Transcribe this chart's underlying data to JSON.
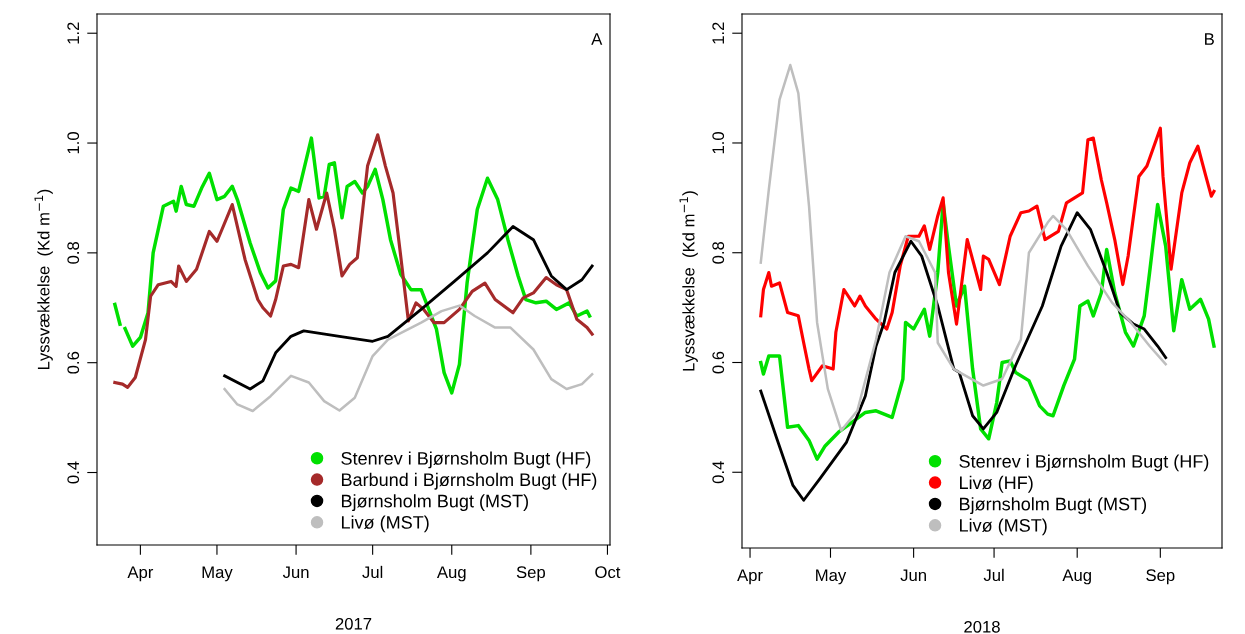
{
  "chart_data": [
    {
      "type": "line",
      "xlabel": "2017",
      "ylabel": "Lyssvækkelse  (Kd m$^{−1}$)",
      "annotations": [
        "A"
      ],
      "xlim": [
        "2017-03-15",
        "2017-10-02"
      ],
      "xticks": [
        {
          "value": "2017-04-01",
          "label": "Apr"
        },
        {
          "value": "2017-05-01",
          "label": "May"
        },
        {
          "value": "2017-06-01",
          "label": "Jun"
        },
        {
          "value": "2017-07-01",
          "label": "Jul"
        },
        {
          "value": "2017-08-01",
          "label": "Aug"
        },
        {
          "value": "2017-09-01",
          "label": "Sep"
        },
        {
          "value": "2017-10-01",
          "label": "Oct"
        }
      ],
      "ylim": [
        0.268,
        1.235
      ],
      "yticks": [
        {
          "value": 0.4,
          "label": "0.4"
        },
        {
          "value": 0.6,
          "label": "0.6"
        },
        {
          "value": 0.8,
          "label": "0.8"
        },
        {
          "value": 1.0,
          "label": "1.0"
        },
        {
          "value": 1.2,
          "label": "1.2"
        }
      ],
      "legend": "bottom right",
      "marker": "none",
      "line_style": "solid",
      "series": [
        {
          "name": "Stenrev i Bjørnsholm Bugt (HF)",
          "color": "#00e000",
          "x": [
            "2017-03-22",
            "2017-03-24",
            "2017-03-25",
            "2017-03-26",
            "2017-03-29",
            "2017-04-01",
            "2017-04-04",
            "2017-04-06",
            "2017-04-10",
            "2017-04-14",
            "2017-04-15",
            "2017-04-17",
            "2017-04-19",
            "2017-04-22",
            "2017-04-25",
            "2017-04-28",
            "2017-05-01",
            "2017-05-04",
            "2017-05-07",
            "2017-05-09",
            "2017-05-14",
            "2017-05-18",
            "2017-05-21",
            "2017-05-24",
            "2017-05-27",
            "2017-05-30",
            "2017-06-02",
            "2017-06-07",
            "2017-06-10",
            "2017-06-12",
            "2017-06-14",
            "2017-06-16",
            "2017-06-19",
            "2017-06-21",
            "2017-06-24",
            "2017-06-27",
            "2017-06-29",
            "2017-07-02",
            "2017-07-05",
            "2017-07-08",
            "2017-07-12",
            "2017-07-16",
            "2017-07-20",
            "2017-07-26",
            "2017-07-29",
            "2017-08-01",
            "2017-08-04",
            "2017-08-07",
            "2017-08-11",
            "2017-08-15",
            "2017-08-19",
            "2017-08-23",
            "2017-08-27",
            "2017-08-30",
            "2017-09-03",
            "2017-09-07",
            "2017-09-11",
            "2017-09-16",
            "2017-09-19",
            "2017-09-23",
            "2017-09-24"
          ],
          "values": [
            0.706,
            0.67,
            null,
            0.662,
            0.63,
            0.646,
            0.691,
            0.8,
            0.885,
            0.894,
            0.876,
            0.921,
            0.888,
            0.885,
            0.918,
            0.945,
            0.897,
            0.903,
            0.921,
            0.897,
            0.818,
            0.764,
            0.736,
            0.749,
            0.879,
            0.918,
            0.912,
            1.009,
            0.9,
            0.903,
            0.961,
            0.964,
            0.864,
            0.921,
            0.93,
            0.909,
            0.921,
            0.952,
            0.897,
            0.824,
            0.761,
            0.733,
            0.733,
            0.661,
            0.582,
            0.545,
            0.597,
            0.745,
            0.879,
            0.936,
            0.897,
            0.824,
            0.758,
            0.715,
            0.709,
            0.712,
            0.697,
            0.709,
            0.685,
            0.694,
            0.685
          ]
        },
        {
          "name": "Barbund i Bjørnsholm Bugt (HF)",
          "color": "#a52a2a",
          "x": [
            "2017-03-22",
            "2017-03-25",
            "2017-03-27",
            "2017-03-30",
            "2017-04-03",
            "2017-04-05",
            "2017-04-08",
            "2017-04-13",
            "2017-04-15",
            "2017-04-16",
            "2017-04-19",
            "2017-04-23",
            "2017-04-28",
            "2017-05-01",
            "2017-05-03",
            "2017-05-07",
            "2017-05-12",
            "2017-05-17",
            "2017-05-19",
            "2017-05-22",
            "2017-05-24",
            "2017-05-27",
            "2017-05-30",
            "2017-06-02",
            "2017-06-06",
            "2017-06-09",
            "2017-06-13",
            "2017-06-16",
            "2017-06-19",
            "2017-06-22",
            "2017-06-25",
            "2017-06-29",
            "2017-07-03",
            "2017-07-06",
            "2017-07-09",
            "2017-07-12",
            "2017-07-15",
            "2017-07-18",
            "2017-07-21",
            "2017-07-25",
            "2017-07-29",
            "2017-08-04",
            "2017-08-09",
            "2017-08-14",
            "2017-08-18",
            "2017-08-25",
            "2017-08-29",
            "2017-09-02",
            "2017-09-07",
            "2017-09-11",
            "2017-09-15",
            "2017-09-19",
            "2017-09-23",
            "2017-09-25"
          ],
          "values": [
            0.564,
            0.561,
            0.555,
            0.573,
            0.642,
            0.721,
            0.742,
            0.748,
            0.739,
            0.776,
            0.748,
            0.77,
            0.839,
            0.821,
            0.843,
            0.888,
            0.788,
            0.715,
            0.7,
            0.685,
            0.715,
            0.776,
            0.779,
            0.773,
            0.897,
            0.843,
            0.909,
            0.843,
            0.758,
            0.779,
            0.791,
            0.958,
            1.015,
            0.958,
            0.909,
            0.794,
            0.676,
            0.709,
            0.697,
            0.673,
            0.673,
            0.697,
            0.73,
            0.745,
            0.715,
            0.691,
            0.718,
            0.727,
            0.755,
            0.742,
            0.733,
            0.679,
            0.664,
            0.652
          ]
        },
        {
          "name": "Bjørnsholm Bugt (MST)",
          "color": "#000000",
          "x": [
            "2017-05-04",
            "2017-05-14",
            "2017-05-19",
            "2017-05-24",
            "2017-05-30",
            "2017-06-04",
            "2017-06-18",
            "2017-07-01",
            "2017-07-07",
            "2017-07-20",
            "2017-08-02",
            "2017-08-15",
            "2017-08-25",
            "2017-09-02",
            "2017-09-09",
            "2017-09-15",
            "2017-09-21",
            "2017-09-25"
          ],
          "values": [
            0.576,
            0.552,
            0.567,
            0.618,
            0.648,
            0.658,
            0.648,
            0.639,
            0.648,
            0.697,
            0.748,
            0.8,
            0.848,
            0.824,
            0.758,
            0.733,
            0.751,
            0.776
          ]
        },
        {
          "name": "Livø (MST)",
          "color": "#bebebe",
          "x": [
            "2017-05-04",
            "2017-05-09",
            "2017-05-15",
            "2017-05-22",
            "2017-05-30",
            "2017-06-06",
            "2017-06-12",
            "2017-06-18",
            "2017-06-24",
            "2017-07-01",
            "2017-07-07",
            "2017-07-20",
            "2017-07-28",
            "2017-08-04",
            "2017-08-10",
            "2017-08-18",
            "2017-08-24",
            "2017-09-02",
            "2017-09-09",
            "2017-09-15",
            "2017-09-21",
            "2017-09-25"
          ],
          "values": [
            0.552,
            0.524,
            0.512,
            0.539,
            0.576,
            0.564,
            0.53,
            0.513,
            0.536,
            0.612,
            0.642,
            0.673,
            0.694,
            0.704,
            0.685,
            0.664,
            0.664,
            0.624,
            0.57,
            0.552,
            0.561,
            0.579
          ]
        }
      ]
    },
    {
      "type": "line",
      "xlabel": "2018",
      "ylabel": "Lyssvækkelse  (Kd m$^{−1}$)",
      "annotations": [
        "B"
      ],
      "xlim": [
        "2018-03-29",
        "2018-09-24"
      ],
      "xticks": [
        {
          "value": "2018-04-01",
          "label": "Apr"
        },
        {
          "value": "2018-05-01",
          "label": "May"
        },
        {
          "value": "2018-06-01",
          "label": "Jun"
        },
        {
          "value": "2018-07-01",
          "label": "Jul"
        },
        {
          "value": "2018-08-01",
          "label": "Aug"
        },
        {
          "value": "2018-09-01",
          "label": "Sep"
        }
      ],
      "ylim": [
        0.262,
        1.235
      ],
      "yticks": [
        {
          "value": 0.4,
          "label": "0.4"
        },
        {
          "value": 0.6,
          "label": "0.6"
        },
        {
          "value": 0.8,
          "label": "0.8"
        },
        {
          "value": 1.0,
          "label": "1.0"
        },
        {
          "value": 1.2,
          "label": "1.2"
        }
      ],
      "legend": "bottom right",
      "marker": "none",
      "line_style": "solid",
      "series": [
        {
          "name": "Stenrev i Bjørnsholm Bugt (HF)",
          "color": "#00e000",
          "x": [
            "2018-04-05",
            "2018-04-06",
            "2018-04-08",
            "2018-04-12",
            "2018-04-15",
            "2018-04-19",
            "2018-04-23",
            "2018-04-26",
            "2018-04-29",
            "2018-05-04",
            "2018-05-09",
            "2018-05-14",
            "2018-05-18",
            "2018-05-24",
            "2018-05-28",
            "2018-05-29",
            "2018-06-01",
            "2018-06-05",
            "2018-06-07",
            "2018-06-10",
            "2018-06-12",
            "2018-06-14",
            "2018-06-17",
            "2018-06-20",
            "2018-06-23",
            "2018-06-26",
            "2018-06-29",
            "2018-07-02",
            "2018-07-04",
            "2018-07-07",
            "2018-07-09",
            "2018-07-14",
            "2018-07-18",
            "2018-07-21",
            "2018-07-23",
            "2018-07-27",
            "2018-07-31",
            "2018-08-02",
            "2018-08-05",
            "2018-08-07",
            "2018-08-10",
            "2018-08-12",
            "2018-08-15",
            "2018-08-19",
            "2018-08-22",
            "2018-08-26",
            "2018-08-28",
            "2018-08-31",
            "2018-09-03",
            "2018-09-06",
            "2018-09-09",
            "2018-09-12",
            "2018-09-16",
            "2018-09-19",
            "2018-09-21"
          ],
          "values": [
            0.6,
            0.579,
            0.612,
            0.612,
            0.482,
            0.485,
            0.458,
            0.424,
            0.448,
            0.473,
            0.491,
            0.509,
            0.512,
            0.5,
            0.57,
            0.673,
            0.661,
            0.697,
            0.648,
            0.764,
            0.891,
            0.812,
            0.703,
            0.739,
            0.588,
            0.479,
            0.461,
            0.527,
            0.6,
            0.603,
            0.582,
            0.567,
            0.521,
            0.506,
            0.503,
            0.558,
            0.606,
            0.703,
            0.712,
            0.685,
            0.727,
            0.806,
            0.727,
            0.655,
            0.63,
            0.685,
            0.764,
            0.888,
            0.812,
            0.658,
            0.751,
            0.697,
            0.715,
            0.679,
            0.63
          ]
        },
        {
          "name": "Livø (HF)",
          "color": "#ff0000",
          "x": [
            "2018-04-05",
            "2018-04-06",
            "2018-04-08",
            "2018-04-09",
            "2018-04-12",
            "2018-04-15",
            "2018-04-19",
            "2018-04-21",
            "2018-04-23",
            "2018-04-24",
            "2018-04-28",
            "2018-05-02",
            "2018-05-03",
            "2018-05-06",
            "2018-05-10",
            "2018-05-12",
            "2018-05-14",
            "2018-05-18",
            "2018-05-22",
            "2018-05-24",
            "2018-05-27",
            "2018-05-30",
            "2018-06-03",
            "2018-06-05",
            "2018-06-07",
            "2018-06-10",
            "2018-06-12",
            "2018-06-14",
            "2018-06-17",
            "2018-06-21",
            "2018-06-26",
            "2018-06-27",
            "2018-06-29",
            "2018-07-03",
            "2018-07-07",
            "2018-07-11",
            "2018-07-14",
            "2018-07-17",
            "2018-07-20",
            "2018-07-25",
            "2018-07-28",
            "2018-08-03",
            "2018-08-05",
            "2018-08-07",
            "2018-08-10",
            "2018-08-12",
            "2018-08-15",
            "2018-08-18",
            "2018-08-20",
            "2018-08-24",
            "2018-08-27",
            "2018-09-01",
            "2018-09-02",
            "2018-09-05",
            "2018-09-09",
            "2018-09-12",
            "2018-09-15",
            "2018-09-18",
            "2018-09-20",
            "2018-09-21"
          ],
          "values": [
            0.685,
            0.733,
            0.764,
            0.739,
            0.745,
            0.691,
            0.685,
            0.636,
            0.588,
            0.567,
            0.594,
            0.588,
            0.655,
            0.733,
            0.703,
            0.721,
            0.703,
            0.679,
            0.661,
            0.691,
            0.776,
            0.83,
            0.83,
            0.849,
            0.806,
            0.867,
            0.9,
            0.764,
            0.67,
            0.824,
            0.733,
            0.794,
            0.788,
            0.742,
            0.83,
            0.873,
            0.876,
            0.885,
            0.824,
            0.839,
            0.891,
            0.909,
            1.006,
            1.009,
            0.933,
            0.891,
            0.824,
            0.742,
            0.794,
            0.939,
            0.958,
            1.027,
            0.939,
            0.77,
            0.909,
            0.964,
            0.994,
            0.939,
            0.903,
            0.912
          ]
        },
        {
          "name": "Bjørnsholm Bugt (MST)",
          "color": "#000000",
          "x": [
            "2018-04-05",
            "2018-04-11",
            "2018-04-17",
            "2018-04-21",
            "2018-04-27",
            "2018-05-07",
            "2018-05-14",
            "2018-05-18",
            "2018-05-21",
            "2018-05-25",
            "2018-05-31",
            "2018-06-04",
            "2018-06-10",
            "2018-06-16",
            "2018-06-18",
            "2018-06-23",
            "2018-06-27",
            "2018-07-02",
            "2018-07-09",
            "2018-07-19",
            "2018-07-26",
            "2018-08-01",
            "2018-08-06",
            "2018-08-12",
            "2018-08-17",
            "2018-08-22",
            "2018-08-26",
            "2018-08-31",
            "2018-09-03"
          ],
          "values": [
            0.548,
            0.461,
            0.376,
            0.349,
            0.388,
            0.455,
            0.539,
            0.63,
            0.673,
            0.764,
            0.821,
            0.794,
            0.703,
            0.588,
            0.582,
            0.503,
            0.479,
            0.509,
            0.594,
            0.703,
            0.812,
            0.873,
            0.842,
            0.764,
            0.691,
            0.67,
            0.661,
            0.63,
            0.609
          ]
        },
        {
          "name": "Livø (MST)",
          "color": "#bebebe",
          "x": [
            "2018-04-05",
            "2018-04-08",
            "2018-04-12",
            "2018-04-16",
            "2018-04-19",
            "2018-04-23",
            "2018-04-26",
            "2018-04-30",
            "2018-05-05",
            "2018-05-11",
            "2018-05-18",
            "2018-05-23",
            "2018-05-29",
            "2018-06-03",
            "2018-06-09",
            "2018-06-10",
            "2018-06-16",
            "2018-06-27",
            "2018-07-04",
            "2018-07-11",
            "2018-07-14",
            "2018-07-21",
            "2018-07-23",
            "2018-07-28",
            "2018-08-05",
            "2018-08-14",
            "2018-08-21",
            "2018-08-28",
            "2018-09-03"
          ],
          "values": [
            0.782,
            0.915,
            1.079,
            1.142,
            1.091,
            0.885,
            0.673,
            0.552,
            0.476,
            0.512,
            0.642,
            0.764,
            0.83,
            0.821,
            0.764,
            0.636,
            0.588,
            0.558,
            0.57,
            0.642,
            0.8,
            0.855,
            0.867,
            0.842,
            0.776,
            0.709,
            0.673,
            0.63,
            0.597
          ]
        }
      ]
    }
  ]
}
